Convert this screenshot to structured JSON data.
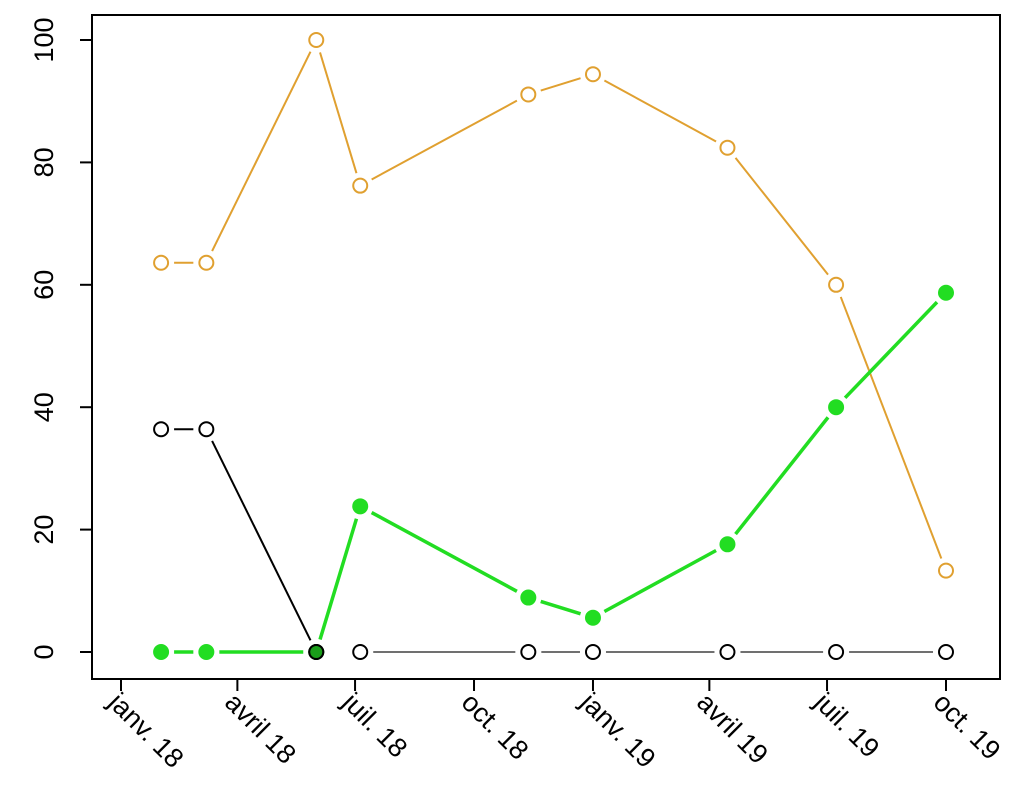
{
  "chart_data": {
    "type": "line",
    "title": "",
    "xlabel": "",
    "ylabel": "",
    "ylim": [
      0,
      100
    ],
    "y_ticks": [
      0,
      20,
      40,
      60,
      80,
      100
    ],
    "x_ticks": [
      {
        "date": "2018-01-01",
        "label": "janv. 18"
      },
      {
        "date": "2018-04-01",
        "label": "avril 18"
      },
      {
        "date": "2018-07-01",
        "label": "juil. 18"
      },
      {
        "date": "2018-10-01",
        "label": "oct. 18"
      },
      {
        "date": "2019-01-01",
        "label": "janv. 19"
      },
      {
        "date": "2019-04-01",
        "label": "avril 19"
      },
      {
        "date": "2019-07-01",
        "label": "juil. 19"
      },
      {
        "date": "2019-10-01",
        "label": "oct. 19"
      }
    ],
    "grid": false,
    "series": [
      {
        "color": "#e0a030",
        "marker": "open-circle",
        "points": [
          {
            "x": "2018-02-01",
            "y": 63.6
          },
          {
            "x": "2018-03-08",
            "y": 63.6
          },
          {
            "x": "2018-06-01",
            "y": 100
          },
          {
            "x": "2018-07-05",
            "y": 76.2
          },
          {
            "x": "2018-11-12",
            "y": 91.1
          },
          {
            "x": "2019-01-01",
            "y": 94.4
          },
          {
            "x": "2019-04-15",
            "y": 82.4
          },
          {
            "x": "2019-07-08",
            "y": 60
          },
          {
            "x": "2019-10-01",
            "y": 13.3
          }
        ]
      },
      {
        "color": "#22dd22",
        "marker": "filled-circle",
        "points": [
          {
            "x": "2018-02-01",
            "y": 0
          },
          {
            "x": "2018-03-08",
            "y": 0
          },
          {
            "x": "2018-06-01",
            "y": 0
          },
          {
            "x": "2018-07-05",
            "y": 23.8
          },
          {
            "x": "2018-11-12",
            "y": 8.9
          },
          {
            "x": "2019-01-01",
            "y": 5.6
          },
          {
            "x": "2019-04-15",
            "y": 17.6
          },
          {
            "x": "2019-07-08",
            "y": 40
          },
          {
            "x": "2019-10-01",
            "y": 58.7
          }
        ]
      },
      {
        "color": "#000000",
        "marker": "open-circle",
        "points": [
          {
            "x": "2018-02-01",
            "y": 36.4
          },
          {
            "x": "2018-03-08",
            "y": 36.4
          },
          {
            "x": "2018-06-01",
            "y": 0
          }
        ]
      },
      {
        "color": "#000000",
        "marker": "open-circle",
        "points": [
          {
            "x": "2018-07-05",
            "y": 0
          },
          {
            "x": "2018-11-12",
            "y": 0
          },
          {
            "x": "2019-01-01",
            "y": 0
          },
          {
            "x": "2019-04-15",
            "y": 0
          },
          {
            "x": "2019-07-08",
            "y": 0
          },
          {
            "x": "2019-10-01",
            "y": 0
          }
        ]
      }
    ]
  }
}
